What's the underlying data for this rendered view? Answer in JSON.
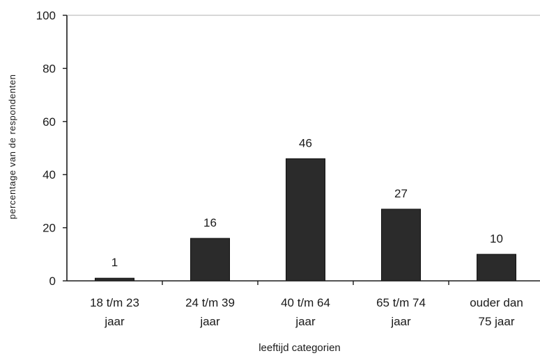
{
  "chart_data": {
    "type": "bar",
    "categories": [
      [
        "18 t/m 23",
        "jaar"
      ],
      [
        "24 t/m 39",
        "jaar"
      ],
      [
        "40 t/m 64",
        "jaar"
      ],
      [
        "65 t/m 74",
        "jaar"
      ],
      [
        "ouder dan",
        "75 jaar"
      ]
    ],
    "values": [
      1,
      16,
      46,
      27,
      10
    ],
    "data_labels": [
      "1",
      "16",
      "46",
      "27",
      "10"
    ],
    "xlabel": "leeftijd categorien",
    "ylabel": "percentage van de respondenten",
    "ylim": [
      0,
      100
    ],
    "yticks": [
      0,
      20,
      40,
      60,
      80,
      100
    ],
    "ytick_labels": [
      "0",
      "20",
      "40",
      "60",
      "80",
      "100"
    ],
    "grid": false,
    "bar_color": "#2b2b2b"
  }
}
